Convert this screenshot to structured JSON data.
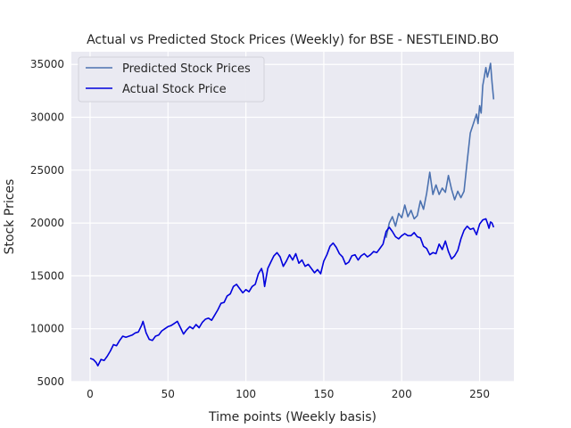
{
  "chart_data": {
    "type": "line",
    "title": "Actual vs Predicted Stock Prices (Weekly) for BSE - NESTLEIND.BO",
    "xlabel": "Time points (Weekly basis)",
    "ylabel": "Stock Prices",
    "xlim": [
      -12,
      272
    ],
    "ylim": [
      5000,
      36200
    ],
    "x_ticks": [
      0,
      50,
      100,
      150,
      200,
      250
    ],
    "y_ticks": [
      5000,
      10000,
      15000,
      20000,
      25000,
      30000,
      35000
    ],
    "grid": true,
    "legend_position": "top-left",
    "series": [
      {
        "name": "Predicted Stock Prices",
        "color": "#4c72b0",
        "points": [
          [
            190,
            18600
          ],
          [
            192,
            20000
          ],
          [
            194,
            20600
          ],
          [
            196,
            19700
          ],
          [
            198,
            20900
          ],
          [
            200,
            20500
          ],
          [
            202,
            21700
          ],
          [
            204,
            20600
          ],
          [
            206,
            21200
          ],
          [
            208,
            20400
          ],
          [
            210,
            20700
          ],
          [
            212,
            22100
          ],
          [
            214,
            21300
          ],
          [
            216,
            22800
          ],
          [
            218,
            24800
          ],
          [
            220,
            22700
          ],
          [
            222,
            23600
          ],
          [
            224,
            22700
          ],
          [
            226,
            23300
          ],
          [
            228,
            22900
          ],
          [
            230,
            24500
          ],
          [
            232,
            23200
          ],
          [
            234,
            22200
          ],
          [
            236,
            23000
          ],
          [
            238,
            22400
          ],
          [
            240,
            23000
          ],
          [
            242,
            25800
          ],
          [
            244,
            28500
          ],
          [
            246,
            29400
          ],
          [
            248,
            30300
          ],
          [
            249,
            29400
          ],
          [
            250,
            31100
          ],
          [
            251,
            30400
          ],
          [
            252,
            33000
          ],
          [
            253,
            33800
          ],
          [
            254,
            34700
          ],
          [
            255,
            33800
          ],
          [
            256,
            34400
          ],
          [
            257,
            35100
          ],
          [
            258,
            33300
          ],
          [
            259,
            31700
          ]
        ]
      },
      {
        "name": "Actual Stock Price",
        "color": "#0000dd",
        "points": [
          [
            0,
            7200
          ],
          [
            2,
            7100
          ],
          [
            4,
            6800
          ],
          [
            5,
            6500
          ],
          [
            7,
            7100
          ],
          [
            9,
            7000
          ],
          [
            11,
            7400
          ],
          [
            13,
            7900
          ],
          [
            15,
            8500
          ],
          [
            17,
            8400
          ],
          [
            19,
            8900
          ],
          [
            21,
            9300
          ],
          [
            23,
            9200
          ],
          [
            25,
            9300
          ],
          [
            27,
            9400
          ],
          [
            29,
            9600
          ],
          [
            31,
            9700
          ],
          [
            33,
            10300
          ],
          [
            34,
            10700
          ],
          [
            36,
            9600
          ],
          [
            38,
            9000
          ],
          [
            40,
            8900
          ],
          [
            42,
            9300
          ],
          [
            44,
            9400
          ],
          [
            46,
            9800
          ],
          [
            48,
            10000
          ],
          [
            50,
            10200
          ],
          [
            52,
            10300
          ],
          [
            54,
            10500
          ],
          [
            56,
            10700
          ],
          [
            58,
            10100
          ],
          [
            60,
            9500
          ],
          [
            62,
            9900
          ],
          [
            64,
            10200
          ],
          [
            66,
            10000
          ],
          [
            68,
            10400
          ],
          [
            70,
            10100
          ],
          [
            72,
            10600
          ],
          [
            74,
            10900
          ],
          [
            76,
            11000
          ],
          [
            78,
            10800
          ],
          [
            80,
            11300
          ],
          [
            82,
            11800
          ],
          [
            84,
            12400
          ],
          [
            86,
            12500
          ],
          [
            88,
            13100
          ],
          [
            90,
            13300
          ],
          [
            92,
            14000
          ],
          [
            94,
            14200
          ],
          [
            96,
            13800
          ],
          [
            98,
            13400
          ],
          [
            100,
            13700
          ],
          [
            102,
            13500
          ],
          [
            104,
            14000
          ],
          [
            106,
            14200
          ],
          [
            108,
            15200
          ],
          [
            110,
            15700
          ],
          [
            111,
            15200
          ],
          [
            112,
            14000
          ],
          [
            114,
            15700
          ],
          [
            116,
            16300
          ],
          [
            118,
            16900
          ],
          [
            120,
            17200
          ],
          [
            122,
            16800
          ],
          [
            124,
            15900
          ],
          [
            126,
            16400
          ],
          [
            128,
            17000
          ],
          [
            130,
            16500
          ],
          [
            132,
            17100
          ],
          [
            134,
            16200
          ],
          [
            136,
            16500
          ],
          [
            138,
            15900
          ],
          [
            140,
            16100
          ],
          [
            142,
            15700
          ],
          [
            144,
            15300
          ],
          [
            146,
            15600
          ],
          [
            148,
            15200
          ],
          [
            150,
            16400
          ],
          [
            152,
            17000
          ],
          [
            154,
            17800
          ],
          [
            156,
            18100
          ],
          [
            158,
            17700
          ],
          [
            160,
            17100
          ],
          [
            162,
            16800
          ],
          [
            164,
            16100
          ],
          [
            166,
            16300
          ],
          [
            168,
            16900
          ],
          [
            170,
            17000
          ],
          [
            172,
            16500
          ],
          [
            174,
            16900
          ],
          [
            176,
            17100
          ],
          [
            178,
            16800
          ],
          [
            180,
            17000
          ],
          [
            182,
            17300
          ],
          [
            184,
            17200
          ],
          [
            186,
            17600
          ],
          [
            188,
            18000
          ],
          [
            190,
            19200
          ],
          [
            192,
            19600
          ],
          [
            194,
            19200
          ],
          [
            196,
            18700
          ],
          [
            198,
            18500
          ],
          [
            200,
            18800
          ],
          [
            202,
            19000
          ],
          [
            204,
            18800
          ],
          [
            206,
            18800
          ],
          [
            208,
            19100
          ],
          [
            210,
            18700
          ],
          [
            212,
            18600
          ],
          [
            214,
            17800
          ],
          [
            216,
            17600
          ],
          [
            218,
            17000
          ],
          [
            220,
            17200
          ],
          [
            222,
            17100
          ],
          [
            224,
            18000
          ],
          [
            226,
            17500
          ],
          [
            228,
            18300
          ],
          [
            230,
            17300
          ],
          [
            232,
            16600
          ],
          [
            234,
            16900
          ],
          [
            236,
            17400
          ],
          [
            238,
            18500
          ],
          [
            240,
            19300
          ],
          [
            242,
            19700
          ],
          [
            244,
            19400
          ],
          [
            246,
            19500
          ],
          [
            248,
            18900
          ],
          [
            250,
            19900
          ],
          [
            252,
            20300
          ],
          [
            254,
            20400
          ],
          [
            255,
            20000
          ],
          [
            256,
            19500
          ],
          [
            257,
            20100
          ],
          [
            258,
            20000
          ],
          [
            259,
            19600
          ]
        ]
      }
    ]
  }
}
